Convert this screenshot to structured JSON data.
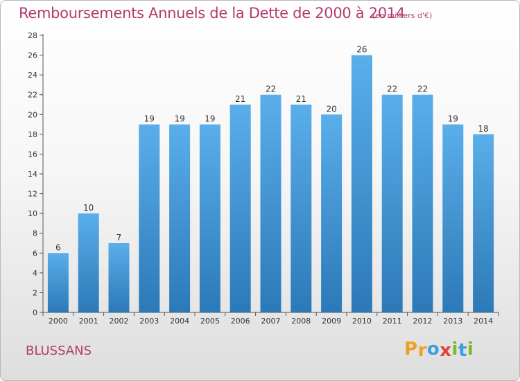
{
  "header": {
    "title": "Remboursements Annuels de la Dette de 2000 à 2014",
    "subtitle": "(en milliers d'€)"
  },
  "footer": {
    "commune": "BLUSSANS",
    "logo_letters": [
      "P",
      "r",
      "o",
      "x",
      "i",
      "t",
      "i"
    ]
  },
  "colors": {
    "title": "#b33a6e",
    "bar_light": "#5aaeea",
    "bar_dark": "#2c79b8",
    "logo": [
      "#f0a020",
      "#f0a020",
      "#3a9ee0",
      "#e04040",
      "#7ab830",
      "#3a9ee0",
      "#7ab830"
    ]
  },
  "chart_data": {
    "type": "bar",
    "title": "Remboursements Annuels de la Dette de 2000 à 2014",
    "subtitle": "(en milliers d'€)",
    "xlabel": "",
    "ylabel": "",
    "categories": [
      "2000",
      "2001",
      "2002",
      "2003",
      "2004",
      "2005",
      "2006",
      "2007",
      "2008",
      "2009",
      "2010",
      "2011",
      "2012",
      "2013",
      "2014"
    ],
    "values": [
      6,
      10,
      7,
      19,
      19,
      19,
      21,
      22,
      21,
      20,
      26,
      22,
      22,
      19,
      18
    ],
    "ylim": [
      0,
      28
    ],
    "yticks": [
      0,
      2,
      4,
      6,
      8,
      10,
      12,
      14,
      16,
      18,
      20,
      22,
      24,
      26,
      28
    ],
    "grid": false,
    "data_labels": true
  }
}
